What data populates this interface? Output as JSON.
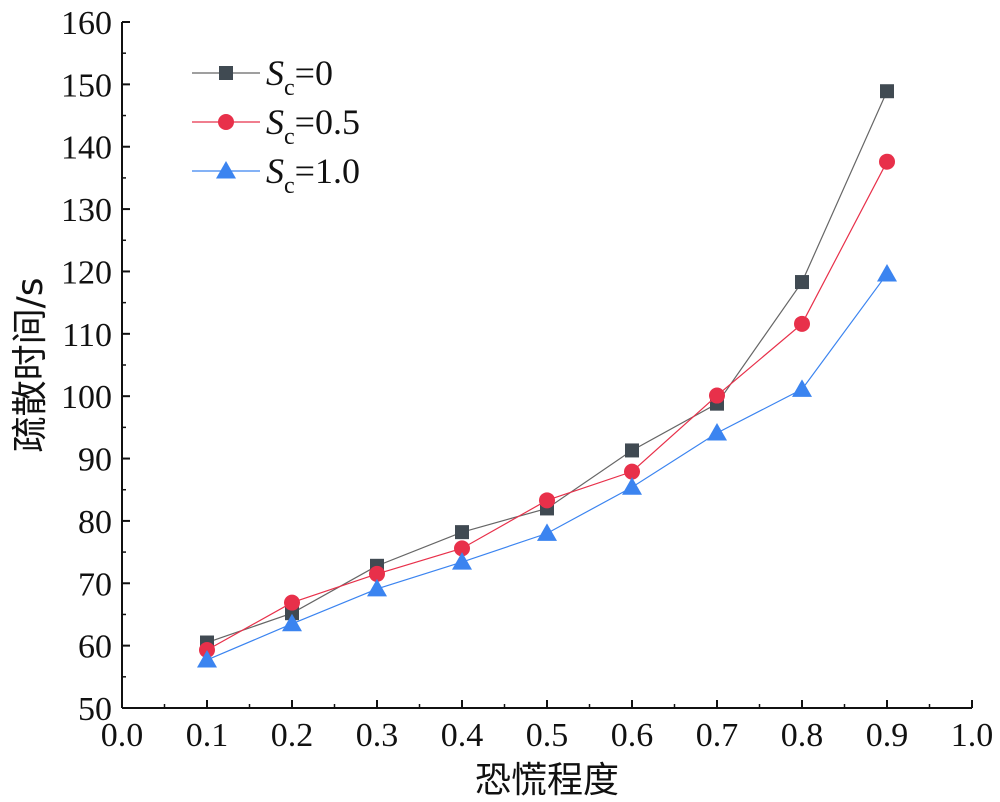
{
  "chart_data": {
    "type": "line",
    "xlabel": "恐慌程度",
    "ylabel": "疏散时间/s",
    "xlim": [
      0.0,
      1.0
    ],
    "ylim": [
      50,
      160
    ],
    "xticks": [
      "0.0",
      "0.1",
      "0.2",
      "0.3",
      "0.4",
      "0.5",
      "0.6",
      "0.7",
      "0.8",
      "0.9",
      "1.0"
    ],
    "yticks": [
      "50",
      "60",
      "70",
      "80",
      "90",
      "100",
      "110",
      "120",
      "130",
      "140",
      "150",
      "160"
    ],
    "legend_position": "top-left",
    "x": [
      0.1,
      0.2,
      0.3,
      0.4,
      0.5,
      0.6,
      0.7,
      0.8,
      0.9
    ],
    "series": [
      {
        "name": "Sc=0",
        "label_main": "S",
        "label_sub": "c",
        "label_rest": "=0",
        "marker": "square",
        "color": "#404a52",
        "line_color": "#666666",
        "values": [
          60.5,
          65.2,
          72.8,
          78.2,
          82.0,
          91.3,
          98.8,
          118.3,
          148.9
        ]
      },
      {
        "name": "Sc=0.5",
        "label_main": "S",
        "label_sub": "c",
        "label_rest": "=0.5",
        "marker": "circle",
        "color": "#e8304a",
        "line_color": "#e8304a",
        "values": [
          59.3,
          66.9,
          71.5,
          75.6,
          83.3,
          87.9,
          100.1,
          111.6,
          137.6
        ]
      },
      {
        "name": "Sc=1.0",
        "label_main": "S",
        "label_sub": "c",
        "label_rest": "=1.0",
        "marker": "triangle",
        "color": "#3b84f0",
        "line_color": "#3b84f0",
        "values": [
          57.7,
          63.5,
          69.1,
          73.4,
          78.0,
          85.4,
          94.1,
          101.1,
          119.6
        ]
      }
    ]
  }
}
